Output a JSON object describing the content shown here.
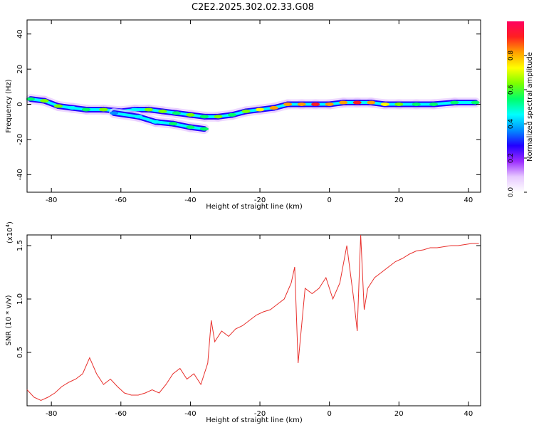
{
  "title": "C2E2.2025.302.02.33.G08",
  "chart_data": [
    {
      "type": "heatmap",
      "title": "C2E2.2025.302.02.33.G08",
      "xlabel": "Height of straight line (km)",
      "ylabel": "Frequency (Hz)",
      "xlim": [
        -87,
        43.5
      ],
      "ylim": [
        -50,
        48
      ],
      "x_ticks": [
        -80,
        -60,
        -40,
        -20,
        0,
        20,
        40
      ],
      "y_ticks": [
        40,
        20,
        0,
        -20,
        -40
      ],
      "colorbar": {
        "label": "Normalized spectral amplitude",
        "range": [
          0,
          1
        ],
        "ticks": [
          0.0,
          0.2,
          0.4,
          0.6,
          0.8
        ],
        "tick_labels": [
          "0.0",
          "0.2",
          "0.4",
          "0.6",
          "0.8"
        ],
        "colors": [
          "#ffffff",
          "#e7c9ff",
          "#9b2cff",
          "#2200ff",
          "#0090ff",
          "#00ffff",
          "#00ff6a",
          "#7dff00",
          "#ffff00",
          "#ffa000",
          "#ff2020",
          "#ff0060"
        ]
      },
      "ridge": [
        {
          "x": -86,
          "f": 3,
          "a": 0.55
        },
        {
          "x": -82,
          "f": 2,
          "a": 0.6
        },
        {
          "x": -78,
          "f": -1,
          "a": 0.6
        },
        {
          "x": -74,
          "f": -2,
          "a": 0.45
        },
        {
          "x": -70,
          "f": -3,
          "a": 0.5
        },
        {
          "x": -65,
          "f": -3,
          "a": 0.6
        },
        {
          "x": -60,
          "f": -4,
          "a": 0.45
        },
        {
          "x": -56,
          "f": -3,
          "a": 0.45
        },
        {
          "x": -52,
          "f": -3,
          "a": 0.6
        },
        {
          "x": -48,
          "f": -4,
          "a": 0.6
        },
        {
          "x": -44,
          "f": -5,
          "a": 0.55
        },
        {
          "x": -40,
          "f": -6,
          "a": 0.6
        },
        {
          "x": -36,
          "f": -7,
          "a": 0.55
        },
        {
          "x": -32,
          "f": -7,
          "a": 0.6
        },
        {
          "x": -28,
          "f": -6,
          "a": 0.55
        },
        {
          "x": -24,
          "f": -4,
          "a": 0.65
        },
        {
          "x": -20,
          "f": -3,
          "a": 0.7
        },
        {
          "x": -16,
          "f": -2,
          "a": 0.8
        },
        {
          "x": -12,
          "f": 0,
          "a": 0.85
        },
        {
          "x": -8,
          "f": 0,
          "a": 0.85
        },
        {
          "x": -4,
          "f": 0,
          "a": 0.9
        },
        {
          "x": 0,
          "f": 0,
          "a": 0.85
        },
        {
          "x": 4,
          "f": 1,
          "a": 0.85
        },
        {
          "x": 8,
          "f": 1,
          "a": 0.9
        },
        {
          "x": 12,
          "f": 1,
          "a": 0.85
        },
        {
          "x": 16,
          "f": 0,
          "a": 0.7
        },
        {
          "x": 20,
          "f": 0,
          "a": 0.6
        },
        {
          "x": 25,
          "f": 0,
          "a": 0.55
        },
        {
          "x": 30,
          "f": 0,
          "a": 0.5
        },
        {
          "x": 36,
          "f": 1,
          "a": 0.5
        },
        {
          "x": 42,
          "f": 1,
          "a": 0.5
        }
      ],
      "secondary_branch": [
        {
          "x": -62,
          "f": -5,
          "a": 0.4
        },
        {
          "x": -55,
          "f": -7,
          "a": 0.45
        },
        {
          "x": -50,
          "f": -10,
          "a": 0.45
        },
        {
          "x": -45,
          "f": -11,
          "a": 0.5
        },
        {
          "x": -40,
          "f": -13,
          "a": 0.5
        },
        {
          "x": -36,
          "f": -14,
          "a": 0.5
        }
      ]
    },
    {
      "type": "line",
      "xlabel": "Height of straight line (km)",
      "ylabel": "SNR (10 * v/v)",
      "y_multiplier": "(x10",
      "y_multiplier_exp": "4",
      "y_multiplier_close": ")",
      "xlim": [
        -87,
        43.5
      ],
      "ylim": [
        0,
        1.6
      ],
      "x_ticks": [
        -80,
        -60,
        -40,
        -20,
        0,
        20,
        40
      ],
      "y_ticks": [
        0.5,
        1.0,
        1.5
      ],
      "y_tick_labels": [
        "0.5",
        "1.0",
        "1.5"
      ],
      "line_color": "#e8302c",
      "series": [
        {
          "name": "SNR",
          "x": [
            -87,
            -85,
            -83,
            -81,
            -79,
            -77,
            -75,
            -73,
            -71,
            -69,
            -67,
            -65,
            -63,
            -61,
            -59,
            -57,
            -55,
            -53,
            -51,
            -49,
            -47,
            -45,
            -43,
            -41,
            -39,
            -37,
            -35,
            -34,
            -33,
            -31,
            -29,
            -27,
            -25,
            -23,
            -21,
            -19,
            -17,
            -15,
            -13,
            -11,
            -10,
            -9,
            -7,
            -5,
            -3,
            -1,
            1,
            3,
            5,
            7,
            8,
            9,
            10,
            11,
            13,
            15,
            17,
            19,
            21,
            23,
            25,
            27,
            29,
            31,
            33,
            35,
            37,
            39,
            41,
            43
          ],
          "y": [
            0.15,
            0.08,
            0.05,
            0.08,
            0.12,
            0.18,
            0.22,
            0.25,
            0.3,
            0.45,
            0.3,
            0.2,
            0.25,
            0.18,
            0.12,
            0.1,
            0.1,
            0.12,
            0.15,
            0.12,
            0.2,
            0.3,
            0.35,
            0.25,
            0.3,
            0.2,
            0.4,
            0.8,
            0.6,
            0.7,
            0.65,
            0.72,
            0.75,
            0.8,
            0.85,
            0.88,
            0.9,
            0.95,
            1.0,
            1.15,
            1.3,
            0.4,
            1.1,
            1.05,
            1.1,
            1.2,
            1.0,
            1.15,
            1.5,
            1.0,
            0.7,
            1.6,
            0.9,
            1.1,
            1.2,
            1.25,
            1.3,
            1.35,
            1.38,
            1.42,
            1.45,
            1.46,
            1.48,
            1.48,
            1.49,
            1.5,
            1.5,
            1.51,
            1.52,
            1.52
          ]
        }
      ]
    }
  ]
}
